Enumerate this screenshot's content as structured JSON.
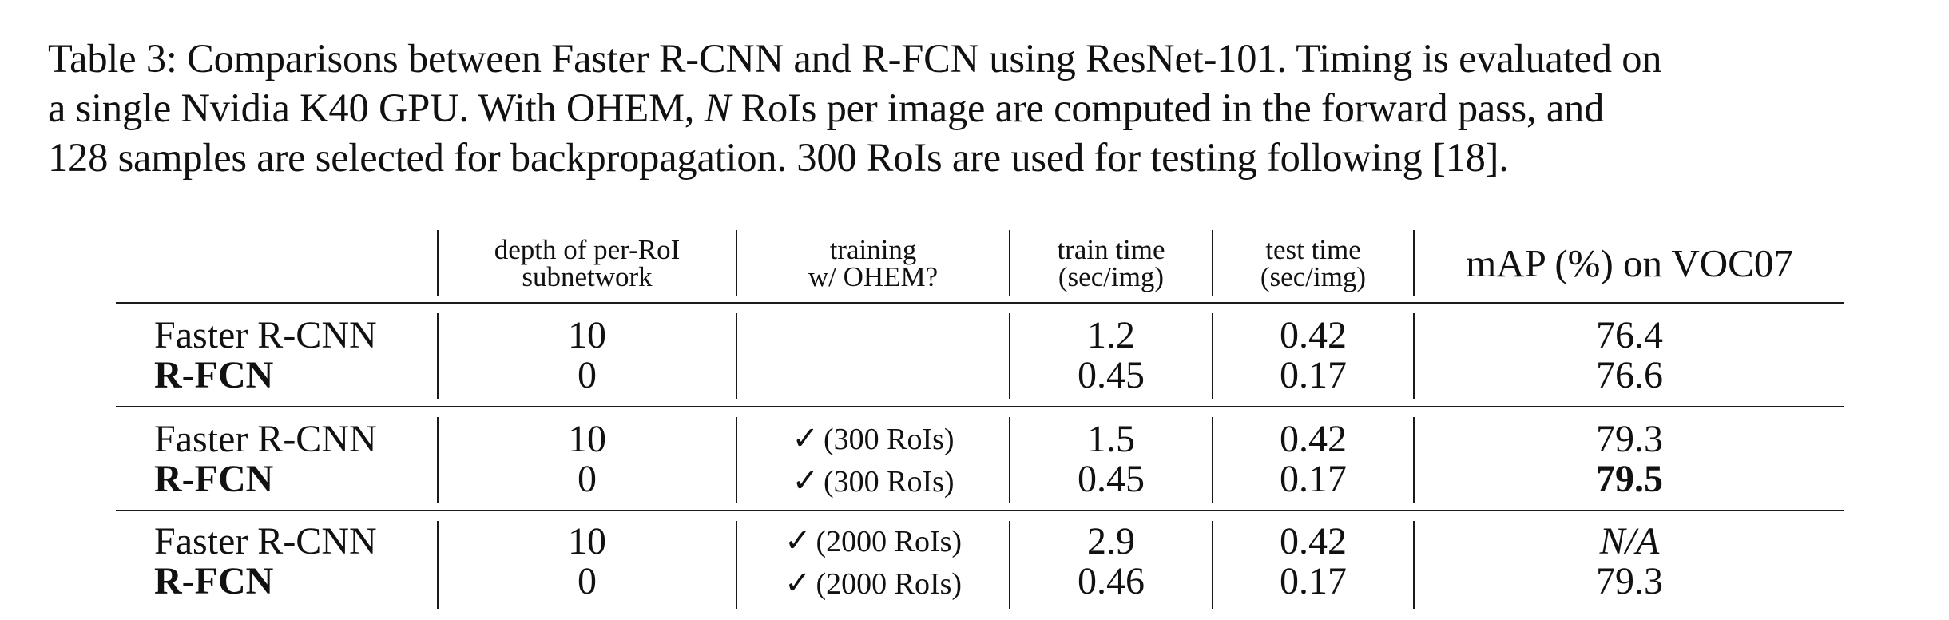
{
  "caption": {
    "line1": "Table 3: Comparisons between Faster R-CNN and R-FCN using ResNet-101. Timing is evaluated on",
    "line2_a": "a single Nvidia K40 GPU. With OHEM, ",
    "line2_math": "N",
    "line2_b": " RoIs per image are computed in the forward pass, and",
    "line3": "128 samples are selected for backpropagation. 300 RoIs are used for testing following [18]."
  },
  "table": {
    "headers": {
      "depth_line1": "depth of per-RoI",
      "depth_line2": "subnetwork",
      "ohem_line1": "training",
      "ohem_line2": "w/ OHEM?",
      "train_line1": "train time",
      "train_line2": "(sec/img)",
      "test_line1": "test time",
      "test_line2": "(sec/img)",
      "map": "mAP (%) on VOC07"
    },
    "check_glyph": "✓",
    "groups": [
      {
        "rows": [
          {
            "method": "Faster R-CNN",
            "depth": "10",
            "ohem": "",
            "train": "1.2",
            "test": "0.42",
            "map": "76.4"
          },
          {
            "method": "R-FCN",
            "depth": "0",
            "ohem": "",
            "train": "0.45",
            "test": "0.17",
            "map": "76.6"
          }
        ]
      },
      {
        "rows": [
          {
            "method": "Faster R-CNN",
            "depth": "10",
            "ohem": "(300 RoIs)",
            "train": "1.5",
            "test": "0.42",
            "map": "79.3"
          },
          {
            "method": "R-FCN",
            "depth": "0",
            "ohem": "(300 RoIs)",
            "train": "0.45",
            "test": "0.17",
            "map": "79.5"
          }
        ]
      },
      {
        "rows": [
          {
            "method": "Faster R-CNN",
            "depth": "10",
            "ohem": "(2000 RoIs)",
            "train": "2.9",
            "test": "0.42",
            "map": "N/A"
          },
          {
            "method": "R-FCN",
            "depth": "0",
            "ohem": "(2000 RoIs)",
            "train": "0.46",
            "test": "0.17",
            "map": "79.3"
          }
        ]
      }
    ]
  }
}
